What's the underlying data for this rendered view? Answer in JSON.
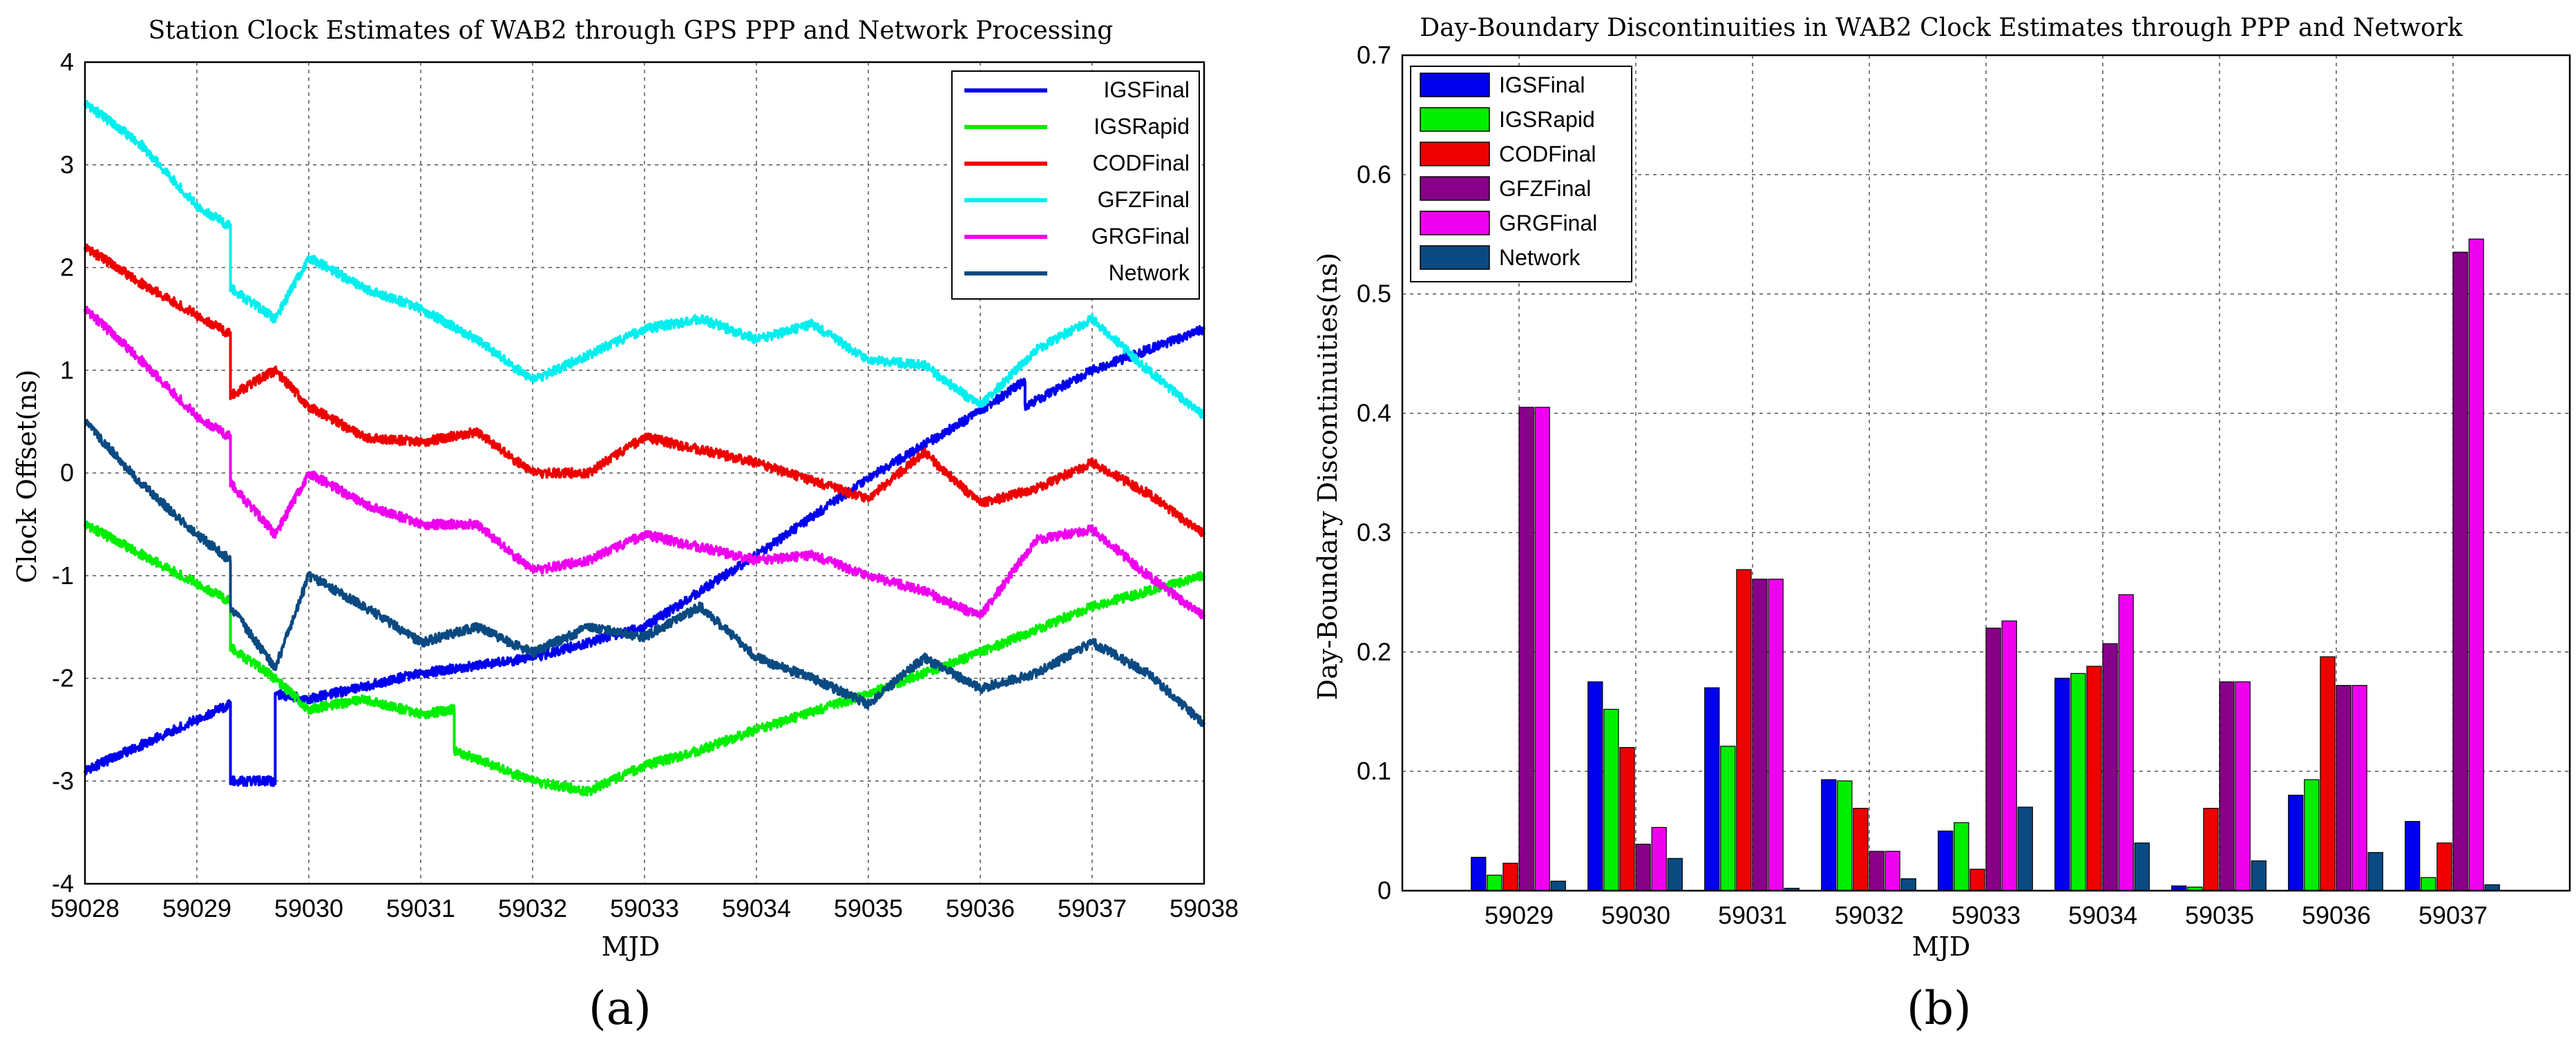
{
  "chart_data": [
    {
      "type": "line",
      "panel_label": "(a)",
      "title": "Station Clock Estimates of WAB2 through GPS PPP and Network Processing",
      "xlabel": "MJD",
      "ylabel": "Clock Offset(ns)",
      "xlim": [
        59028,
        59038
      ],
      "ylim": [
        -4,
        4
      ],
      "xticks": [
        59028,
        59029,
        59030,
        59031,
        59032,
        59033,
        59034,
        59035,
        59036,
        59037,
        59038
      ],
      "yticks": [
        -4,
        -3,
        -2,
        -1,
        0,
        1,
        2,
        3,
        4
      ],
      "grid": true,
      "legend_position": "top-right",
      "series": [
        {
          "name": "IGSFinal",
          "color": "#0000ee",
          "x": [
            59028,
            59029.3,
            59029.3,
            59029.7,
            59029.7,
            59030,
            59031,
            59032,
            59033,
            59034,
            59035,
            59036,
            59036.4,
            59036.4,
            59037,
            59038
          ],
          "y": [
            -2.9,
            -2.25,
            -3.0,
            -3.0,
            -2.15,
            -2.2,
            -1.95,
            -1.8,
            -1.5,
            -0.8,
            -0.05,
            0.6,
            0.9,
            0.65,
            1.0,
            1.4
          ]
        },
        {
          "name": "IGSRapid",
          "color": "#00ee00",
          "x": [
            59028,
            59029.3,
            59029.3,
            59029.7,
            59030,
            59030.5,
            59031,
            59031.3,
            59031.3,
            59032,
            59032.5,
            59033,
            59033.5,
            59034,
            59035,
            59036,
            59037,
            59038
          ],
          "y": [
            -0.5,
            -1.25,
            -1.7,
            -2.0,
            -2.3,
            -2.2,
            -2.35,
            -2.3,
            -2.7,
            -3.0,
            -3.1,
            -2.85,
            -2.7,
            -2.5,
            -2.15,
            -1.75,
            -1.3,
            -1.0
          ]
        },
        {
          "name": "CODFinal",
          "color": "#ee0000",
          "x": [
            59028,
            59028.5,
            59029.3,
            59029.3,
            59029.7,
            59030,
            59030.5,
            59031,
            59031.5,
            59032,
            59032.5,
            59033,
            59034,
            59035,
            59035.5,
            59036,
            59036.5,
            59037,
            59037.5,
            59038
          ],
          "y": [
            2.2,
            1.85,
            1.35,
            0.75,
            1.0,
            0.65,
            0.35,
            0.3,
            0.4,
            0.0,
            0.0,
            0.35,
            0.1,
            -0.25,
            0.2,
            -0.3,
            -0.15,
            0.1,
            -0.2,
            -0.6
          ]
        },
        {
          "name": "GFZFinal",
          "color": "#00eeee",
          "x": [
            59028,
            59028.5,
            59029,
            59029.3,
            59029.3,
            59029.7,
            59030,
            59030.5,
            59031,
            59031.5,
            59032,
            59032.5,
            59033,
            59033.5,
            59034,
            59034.5,
            59035,
            59035.5,
            59036,
            59036.5,
            59037,
            59037.5,
            59038
          ],
          "y": [
            3.6,
            3.2,
            2.6,
            2.4,
            1.8,
            1.5,
            2.1,
            1.8,
            1.6,
            1.3,
            0.9,
            1.15,
            1.4,
            1.5,
            1.3,
            1.45,
            1.1,
            1.05,
            0.65,
            1.2,
            1.5,
            1.0,
            0.55
          ]
        },
        {
          "name": "GRGFinal",
          "color": "#ee00ee",
          "x": [
            59028,
            59028.5,
            59029,
            59029.3,
            59029.3,
            59029.7,
            59030,
            59030.5,
            59031,
            59031.5,
            59032,
            59032.5,
            59033,
            59034,
            59034.5,
            59035,
            59035.5,
            59036,
            59036.5,
            59037,
            59037.5,
            59038
          ],
          "y": [
            1.6,
            1.1,
            0.55,
            0.35,
            -0.1,
            -0.6,
            0.0,
            -0.3,
            -0.5,
            -0.5,
            -0.95,
            -0.85,
            -0.6,
            -0.85,
            -0.8,
            -1.0,
            -1.15,
            -1.4,
            -0.65,
            -0.55,
            -1.0,
            -1.4
          ]
        },
        {
          "name": "Network",
          "color": "#0a4a82",
          "x": [
            59028,
            59028.5,
            59029,
            59029.3,
            59029.3,
            59029.7,
            59030,
            59030.5,
            59031,
            59031.5,
            59032,
            59032.5,
            59033,
            59033.5,
            59034,
            59034.5,
            59035,
            59035.5,
            59036,
            59036.5,
            59037,
            59037.5,
            59038
          ],
          "y": [
            0.5,
            -0.1,
            -0.6,
            -0.85,
            -1.3,
            -1.9,
            -1.0,
            -1.3,
            -1.65,
            -1.5,
            -1.75,
            -1.5,
            -1.6,
            -1.3,
            -1.8,
            -2.0,
            -2.25,
            -1.8,
            -2.1,
            -1.95,
            -1.65,
            -1.95,
            -2.45
          ]
        }
      ]
    },
    {
      "type": "bar",
      "panel_label": "(b)",
      "title": "Day-Boundary Discontinuities in WAB2 Clock Estimates through PPP and Network",
      "xlabel": "MJD",
      "ylabel": "Day-Boundary Discontinuities(ns)",
      "categories": [
        "59029",
        "59030",
        "59031",
        "59032",
        "59033",
        "59034",
        "59035",
        "59036",
        "59037"
      ],
      "ylim": [
        0,
        0.7
      ],
      "yticks": [
        0,
        0.1,
        0.2,
        0.3,
        0.4,
        0.5,
        0.6,
        0.7
      ],
      "grid": true,
      "legend_position": "top-left",
      "series": [
        {
          "name": "IGSFinal",
          "color": "#0000ee",
          "values": [
            0.028,
            0.175,
            0.17,
            0.093,
            0.05,
            0.178,
            0.004,
            0.08,
            0.058
          ]
        },
        {
          "name": "IGSRapid",
          "color": "#00ee00",
          "values": [
            0.013,
            0.152,
            0.121,
            0.092,
            0.057,
            0.182,
            0.003,
            0.093,
            0.011
          ]
        },
        {
          "name": "CODFinal",
          "color": "#ee0000",
          "values": [
            0.023,
            0.12,
            0.269,
            0.069,
            0.018,
            0.188,
            0.069,
            0.196,
            0.04
          ]
        },
        {
          "name": "GFZFinal",
          "color": "#880088",
          "values": [
            0.405,
            0.039,
            0.261,
            0.033,
            0.22,
            0.207,
            0.175,
            0.172,
            0.535
          ]
        },
        {
          "name": "GRGFinal",
          "color": "#ee00ee",
          "values": [
            0.405,
            0.053,
            0.261,
            0.033,
            0.226,
            0.248,
            0.175,
            0.172,
            0.546
          ]
        },
        {
          "name": "Network",
          "color": "#0a4a82",
          "values": [
            0.008,
            0.027,
            0.002,
            0.01,
            0.07,
            0.04,
            0.025,
            0.032,
            0.005
          ]
        }
      ]
    }
  ]
}
